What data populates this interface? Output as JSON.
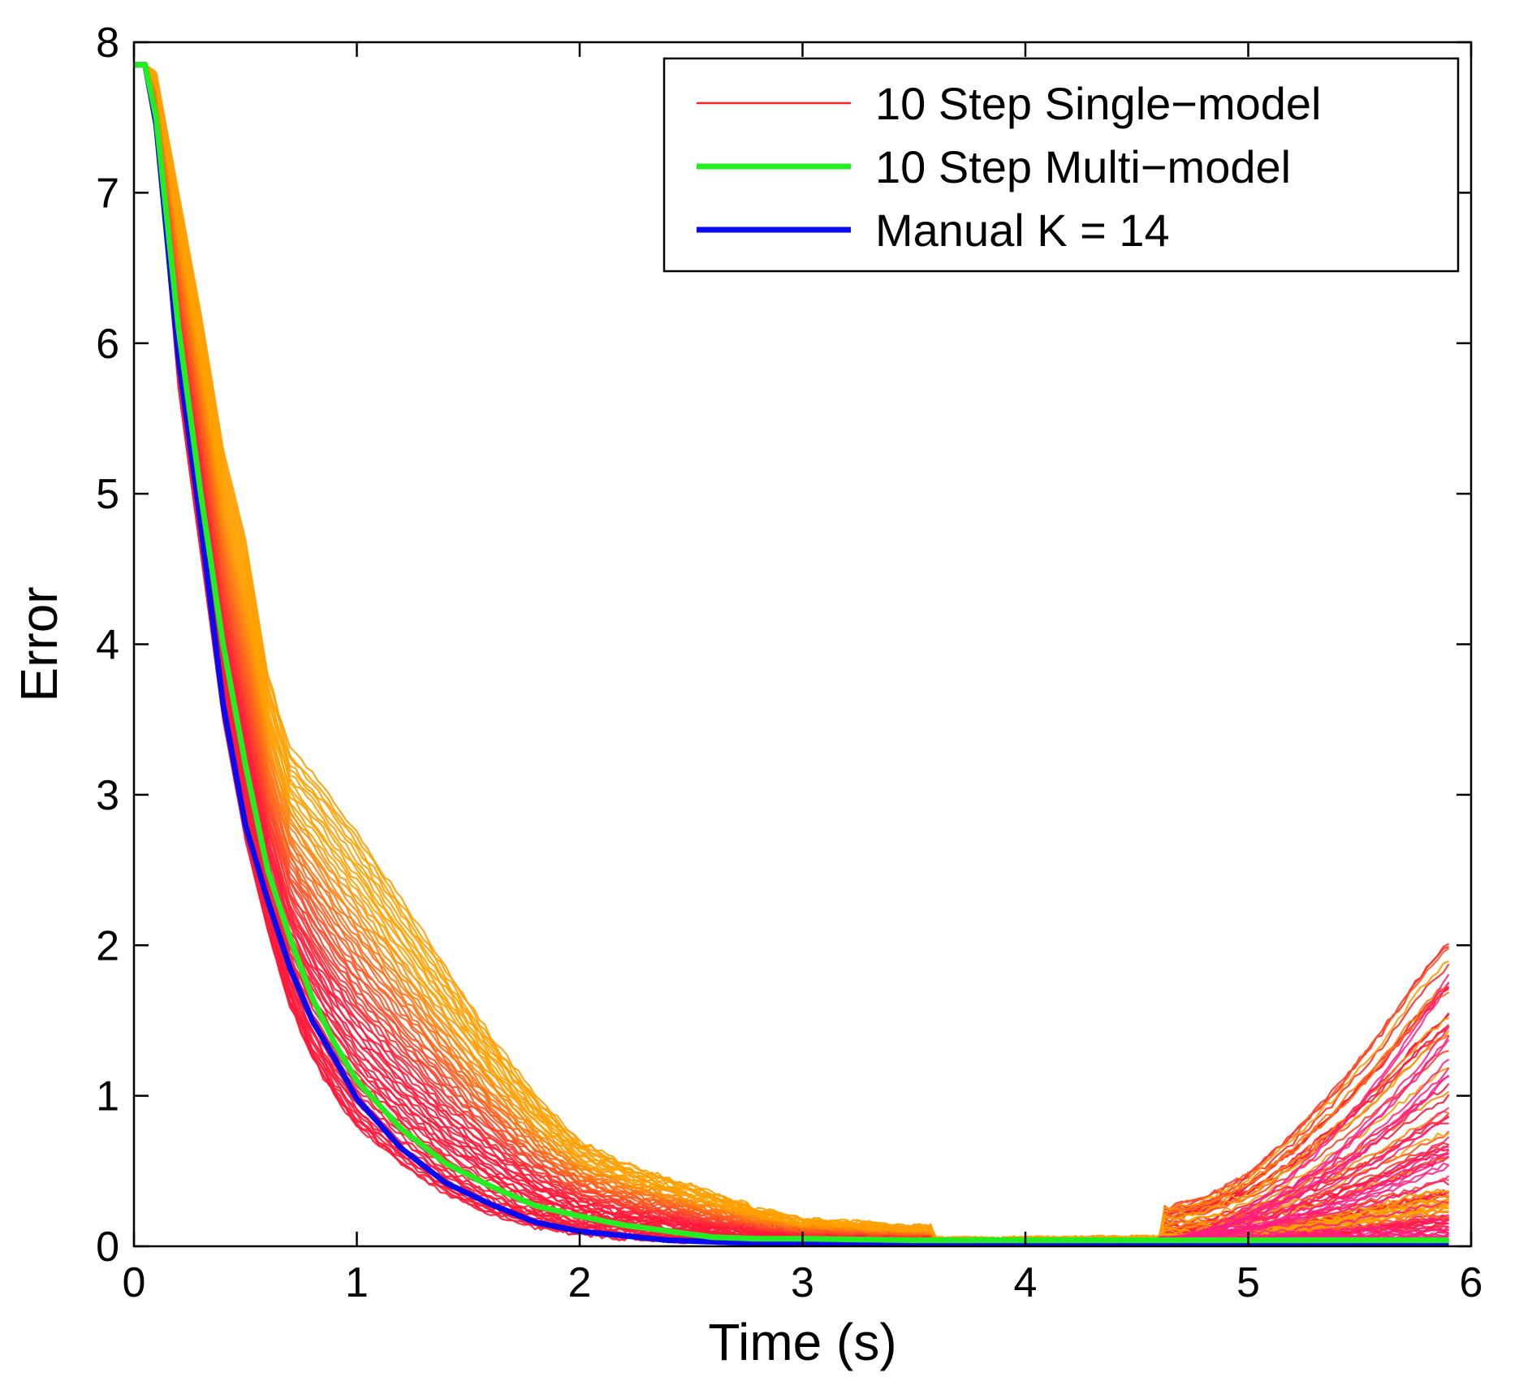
{
  "chart_data": {
    "type": "line",
    "title": "",
    "xlabel": "Time (s)",
    "ylabel": "Error",
    "xlim": [
      0,
      6
    ],
    "ylim": [
      0,
      8
    ],
    "xticks": [
      "0",
      "1",
      "2",
      "3",
      "4",
      "5",
      "6"
    ],
    "yticks": [
      "0",
      "1",
      "2",
      "3",
      "4",
      "5",
      "6",
      "7",
      "8"
    ],
    "grid": false,
    "legend_position": "top-right",
    "legend": [
      {
        "label": "10 Step Single−model",
        "color": "#ff2020"
      },
      {
        "label": "10 Step Multi−model",
        "color": "#22ee22"
      },
      {
        "label": "Manual K = 14",
        "color": "#0a0af0"
      }
    ],
    "colors": {
      "single_model_orange": "#ffa000",
      "single_model_red": "#ff1a3a",
      "single_model_pink": "#ff1f80",
      "multi_model": "#22ee22",
      "manual": "#0a0af0"
    },
    "series": [
      {
        "name": "10 Step Multi−model",
        "x": [
          0,
          0.05,
          0.1,
          0.2,
          0.3,
          0.4,
          0.5,
          0.6,
          0.7,
          0.8,
          0.9,
          1.0,
          1.2,
          1.4,
          1.6,
          1.8,
          2.0,
          2.2,
          2.4,
          2.6,
          2.8,
          3.0,
          3.5,
          4.0,
          4.5,
          5.0,
          5.5,
          5.9
        ],
        "y": [
          7.85,
          7.85,
          7.5,
          6.1,
          5.0,
          4.0,
          3.2,
          2.5,
          2.05,
          1.65,
          1.35,
          1.1,
          0.78,
          0.55,
          0.4,
          0.27,
          0.2,
          0.14,
          0.1,
          0.06,
          0.05,
          0.05,
          0.04,
          0.04,
          0.04,
          0.04,
          0.04,
          0.04
        ]
      },
      {
        "name": "Manual K = 14",
        "x": [
          0,
          0.05,
          0.1,
          0.2,
          0.3,
          0.4,
          0.5,
          0.6,
          0.7,
          0.8,
          0.9,
          1.0,
          1.2,
          1.4,
          1.6,
          1.8,
          2.0,
          2.2,
          2.4,
          2.6,
          2.8,
          3.0,
          3.5,
          4.0,
          4.5,
          5.0,
          5.5,
          5.9
        ],
        "y": [
          7.85,
          7.85,
          7.45,
          5.9,
          4.8,
          3.6,
          2.8,
          2.3,
          1.85,
          1.5,
          1.25,
          0.98,
          0.65,
          0.42,
          0.28,
          0.16,
          0.1,
          0.07,
          0.04,
          0.03,
          0.02,
          0.02,
          0.02,
          0.02,
          0.02,
          0.02,
          0.02,
          0.02
        ]
      },
      {
        "name": "10 Step Single−model",
        "note_ensemble": true,
        "x": [
          0,
          0.05,
          0.1,
          0.2,
          0.3,
          0.4,
          0.5,
          0.6,
          0.7,
          0.8,
          0.9,
          1.0,
          1.2,
          1.4,
          1.6,
          1.8,
          2.0,
          2.2,
          2.4,
          2.6,
          2.8,
          3.0,
          3.5,
          4.0,
          4.5,
          4.8,
          5.0,
          5.2,
          5.4,
          5.6,
          5.8,
          5.9
        ],
        "y_low": [
          7.85,
          7.85,
          7.4,
          5.7,
          4.6,
          3.5,
          2.7,
          2.1,
          1.6,
          1.25,
          1.0,
          0.8,
          0.55,
          0.35,
          0.22,
          0.13,
          0.08,
          0.05,
          0.04,
          0.03,
          0.03,
          0.03,
          0.03,
          0.03,
          0.03,
          0.03,
          0.03,
          0.03,
          0.03,
          0.03,
          0.03,
          0.03
        ],
        "y_high": [
          7.85,
          7.85,
          7.8,
          7.0,
          6.2,
          5.3,
          4.7,
          3.8,
          3.3,
          3.15,
          2.95,
          2.75,
          2.3,
          1.85,
          1.4,
          1.0,
          0.7,
          0.55,
          0.45,
          0.35,
          0.25,
          0.18,
          0.13,
          0.15,
          0.2,
          0.3,
          0.45,
          0.7,
          1.0,
          1.35,
          1.75,
          1.9
        ]
      }
    ]
  }
}
